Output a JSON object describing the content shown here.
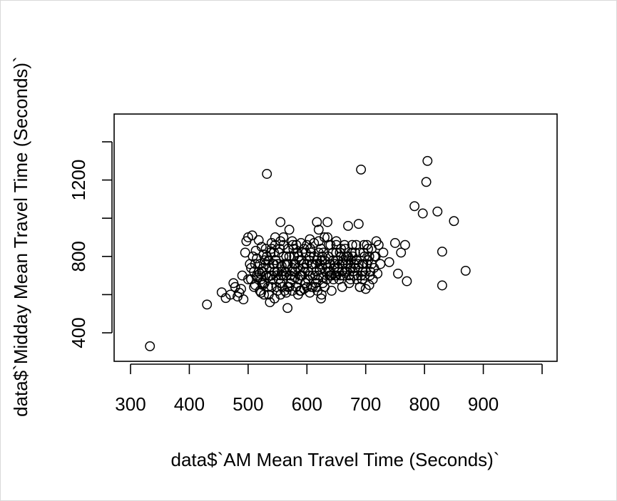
{
  "chart_data": {
    "type": "scatter",
    "title": "",
    "xlabel": "data$`AM Mean Travel Time (Seconds)`",
    "ylabel": "data$`Midday Mean Travel Time (Seconds)`",
    "xlim": [
      290,
      1000
    ],
    "ylim": [
      300,
      1490
    ],
    "x_ticks": [
      300,
      400,
      500,
      600,
      700,
      800,
      900
    ],
    "x_tick_labels": [
      "300",
      "400",
      "500",
      "600",
      "700",
      "800",
      "900"
    ],
    "x_extra_ticks": [
      1000
    ],
    "y_ticks": [
      400,
      800,
      1200
    ],
    "y_tick_labels": [
      "400",
      "800",
      "1200"
    ],
    "y_extra_ticks": [
      600,
      1000,
      1400
    ],
    "grid": false,
    "legend": "none",
    "marker": "open-circle",
    "color": "#000000",
    "points": [
      [
        333,
        330
      ],
      [
        430,
        548
      ],
      [
        455,
        612
      ],
      [
        462,
        582
      ],
      [
        470,
        600
      ],
      [
        475,
        660
      ],
      [
        478,
        640
      ],
      [
        482,
        590
      ],
      [
        485,
        610
      ],
      [
        488,
        630
      ],
      [
        490,
        700
      ],
      [
        492,
        575
      ],
      [
        495,
        820
      ],
      [
        497,
        880
      ],
      [
        500,
        900
      ],
      [
        503,
        760
      ],
      [
        505,
        680
      ],
      [
        507,
        910
      ],
      [
        510,
        720
      ],
      [
        512,
        650
      ],
      [
        515,
        790
      ],
      [
        518,
        885
      ],
      [
        520,
        710
      ],
      [
        522,
        610
      ],
      [
        524,
        660
      ],
      [
        526,
        740
      ],
      [
        528,
        780
      ],
      [
        530,
        840
      ],
      [
        532,
        1232
      ],
      [
        533,
        690
      ],
      [
        535,
        600
      ],
      [
        537,
        560
      ],
      [
        540,
        700
      ],
      [
        542,
        760
      ],
      [
        544,
        820
      ],
      [
        546,
        900
      ],
      [
        548,
        640
      ],
      [
        550,
        720
      ],
      [
        552,
        680
      ],
      [
        555,
        980
      ],
      [
        557,
        750
      ],
      [
        560,
        800
      ],
      [
        562,
        620
      ],
      [
        565,
        700
      ],
      [
        567,
        530
      ],
      [
        568,
        760
      ],
      [
        570,
        940
      ],
      [
        572,
        660
      ],
      [
        575,
        720
      ],
      [
        578,
        800
      ],
      [
        580,
        690
      ],
      [
        582,
        860
      ],
      [
        585,
        740
      ],
      [
        588,
        620
      ],
      [
        590,
        780
      ],
      [
        592,
        700
      ],
      [
        595,
        840
      ],
      [
        598,
        660
      ],
      [
        600,
        760
      ],
      [
        602,
        720
      ],
      [
        605,
        800
      ],
      [
        607,
        640
      ],
      [
        610,
        700
      ],
      [
        612,
        870
      ],
      [
        615,
        760
      ],
      [
        617,
        980
      ],
      [
        618,
        620
      ],
      [
        620,
        940
      ],
      [
        622,
        730
      ],
      [
        624,
        580
      ],
      [
        626,
        800
      ],
      [
        628,
        690
      ],
      [
        630,
        900
      ],
      [
        632,
        760
      ],
      [
        635,
        980
      ],
      [
        637,
        720
      ],
      [
        640,
        860
      ],
      [
        642,
        620
      ],
      [
        645,
        780
      ],
      [
        648,
        700
      ],
      [
        650,
        820
      ],
      [
        652,
        740
      ],
      [
        655,
        680
      ],
      [
        658,
        800
      ],
      [
        660,
        760
      ],
      [
        662,
        700
      ],
      [
        665,
        840
      ],
      [
        668,
        720
      ],
      [
        670,
        960
      ],
      [
        672,
        660
      ],
      [
        675,
        780
      ],
      [
        678,
        800
      ],
      [
        680,
        700
      ],
      [
        682,
        740
      ],
      [
        685,
        680
      ],
      [
        688,
        970
      ],
      [
        690,
        640
      ],
      [
        692,
        1255
      ],
      [
        694,
        760
      ],
      [
        696,
        820
      ],
      [
        698,
        700
      ],
      [
        700,
        630
      ],
      [
        702,
        860
      ],
      [
        704,
        780
      ],
      [
        706,
        650
      ],
      [
        708,
        720
      ],
      [
        710,
        840
      ],
      [
        712,
        680
      ],
      [
        715,
        800
      ],
      [
        718,
        880
      ],
      [
        720,
        710
      ],
      [
        722,
        860
      ],
      [
        725,
        760
      ],
      [
        730,
        820
      ],
      [
        740,
        770
      ],
      [
        750,
        870
      ],
      [
        755,
        710
      ],
      [
        760,
        820
      ],
      [
        767,
        860
      ],
      [
        770,
        670
      ],
      [
        783,
        1063
      ],
      [
        797,
        1025
      ],
      [
        803,
        1190
      ],
      [
        805,
        1300
      ],
      [
        822,
        1035
      ],
      [
        830,
        825
      ],
      [
        830,
        648
      ],
      [
        850,
        985
      ],
      [
        870,
        725
      ],
      [
        500,
        680
      ],
      [
        510,
        640
      ],
      [
        520,
        760
      ],
      [
        530,
        700
      ],
      [
        540,
        640
      ],
      [
        550,
        760
      ],
      [
        560,
        700
      ],
      [
        570,
        640
      ],
      [
        580,
        760
      ],
      [
        590,
        700
      ],
      [
        600,
        640
      ],
      [
        610,
        760
      ],
      [
        620,
        700
      ],
      [
        630,
        640
      ],
      [
        640,
        760
      ],
      [
        650,
        700
      ],
      [
        660,
        640
      ],
      [
        670,
        760
      ],
      [
        680,
        700
      ],
      [
        690,
        640
      ],
      [
        505,
        740
      ],
      [
        515,
        700
      ],
      [
        525,
        650
      ],
      [
        535,
        780
      ],
      [
        545,
        720
      ],
      [
        555,
        660
      ],
      [
        565,
        800
      ],
      [
        575,
        740
      ],
      [
        585,
        680
      ],
      [
        595,
        760
      ],
      [
        605,
        700
      ],
      [
        615,
        660
      ],
      [
        625,
        780
      ],
      [
        635,
        740
      ],
      [
        645,
        680
      ],
      [
        655,
        760
      ],
      [
        665,
        720
      ],
      [
        675,
        740
      ],
      [
        685,
        780
      ],
      [
        695,
        720
      ],
      [
        508,
        800
      ],
      [
        518,
        720
      ],
      [
        528,
        660
      ],
      [
        538,
        820
      ],
      [
        548,
        700
      ],
      [
        558,
        640
      ],
      [
        568,
        840
      ],
      [
        578,
        760
      ],
      [
        588,
        700
      ],
      [
        598,
        820
      ],
      [
        608,
        760
      ],
      [
        618,
        680
      ],
      [
        628,
        820
      ],
      [
        638,
        700
      ],
      [
        648,
        760
      ],
      [
        658,
        840
      ],
      [
        668,
        780
      ],
      [
        678,
        720
      ],
      [
        688,
        760
      ],
      [
        698,
        800
      ],
      [
        512,
        760
      ],
      [
        522,
        680
      ],
      [
        532,
        800
      ],
      [
        542,
        680
      ],
      [
        552,
        820
      ],
      [
        562,
        760
      ],
      [
        572,
        700
      ],
      [
        582,
        640
      ],
      [
        592,
        820
      ],
      [
        602,
        680
      ],
      [
        612,
        800
      ],
      [
        622,
        760
      ],
      [
        632,
        720
      ],
      [
        642,
        700
      ],
      [
        652,
        780
      ],
      [
        662,
        780
      ],
      [
        672,
        700
      ],
      [
        682,
        820
      ],
      [
        692,
        700
      ],
      [
        702,
        760
      ],
      [
        516,
        690
      ],
      [
        526,
        810
      ],
      [
        536,
        740
      ],
      [
        546,
        860
      ],
      [
        556,
        700
      ],
      [
        566,
        760
      ],
      [
        576,
        860
      ],
      [
        586,
        800
      ],
      [
        596,
        720
      ],
      [
        606,
        840
      ],
      [
        616,
        720
      ],
      [
        626,
        740
      ],
      [
        636,
        800
      ],
      [
        646,
        740
      ],
      [
        656,
        820
      ],
      [
        666,
        760
      ],
      [
        676,
        820
      ],
      [
        686,
        700
      ],
      [
        696,
        760
      ],
      [
        706,
        800
      ],
      [
        520,
        620
      ],
      [
        530,
        760
      ],
      [
        540,
        840
      ],
      [
        550,
        620
      ],
      [
        560,
        860
      ],
      [
        570,
        800
      ],
      [
        580,
        720
      ],
      [
        590,
        620
      ],
      [
        600,
        860
      ],
      [
        610,
        640
      ],
      [
        620,
        820
      ],
      [
        630,
        780
      ],
      [
        640,
        700
      ],
      [
        650,
        860
      ],
      [
        660,
        720
      ],
      [
        670,
        800
      ],
      [
        680,
        760
      ],
      [
        690,
        820
      ],
      [
        700,
        720
      ],
      [
        710,
        760
      ],
      [
        524,
        720
      ],
      [
        534,
        640
      ],
      [
        544,
        760
      ],
      [
        554,
        840
      ],
      [
        564,
        720
      ],
      [
        574,
        680
      ],
      [
        584,
        820
      ],
      [
        594,
        740
      ],
      [
        604,
        780
      ],
      [
        614,
        700
      ],
      [
        624,
        840
      ],
      [
        634,
        680
      ],
      [
        644,
        820
      ],
      [
        654,
        720
      ],
      [
        664,
        860
      ],
      [
        674,
        680
      ],
      [
        684,
        860
      ],
      [
        694,
        680
      ],
      [
        704,
        840
      ],
      [
        714,
        740
      ],
      [
        527,
        600
      ],
      [
        537,
        700
      ],
      [
        547,
        780
      ],
      [
        557,
        720
      ],
      [
        567,
        640
      ],
      [
        577,
        840
      ],
      [
        587,
        780
      ],
      [
        597,
        660
      ],
      [
        607,
        820
      ],
      [
        617,
        780
      ],
      [
        627,
        660
      ],
      [
        637,
        860
      ],
      [
        647,
        760
      ],
      [
        657,
        700
      ],
      [
        667,
        800
      ],
      [
        677,
        860
      ],
      [
        687,
        740
      ],
      [
        697,
        860
      ],
      [
        707,
        700
      ],
      [
        717,
        800
      ],
      [
        545,
        580
      ],
      [
        555,
        600
      ],
      [
        565,
        610
      ],
      [
        575,
        620
      ],
      [
        585,
        600
      ],
      [
        595,
        630
      ],
      [
        605,
        610
      ],
      [
        615,
        640
      ],
      [
        625,
        600
      ],
      [
        560,
        900
      ],
      [
        575,
        880
      ],
      [
        590,
        870
      ],
      [
        605,
        890
      ],
      [
        620,
        880
      ],
      [
        635,
        900
      ],
      [
        650,
        880
      ],
      [
        540,
        870
      ],
      [
        555,
        880
      ],
      [
        523,
        850
      ],
      [
        513,
        830
      ]
    ]
  }
}
